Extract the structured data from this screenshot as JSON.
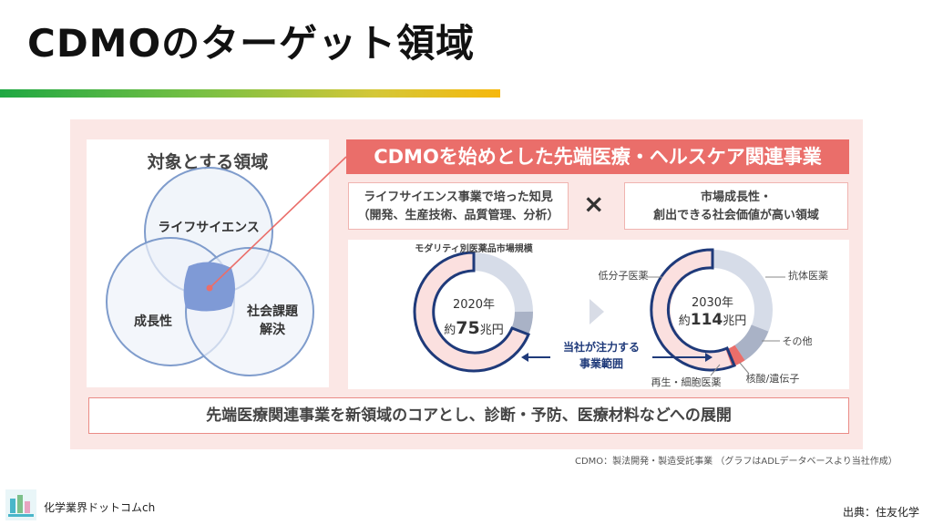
{
  "slide": {
    "title": "CDMOのターゲット領域",
    "venn": {
      "heading": "対象とする領域",
      "circle_top": "ライフサイエンス",
      "circle_left": "成長性",
      "circle_right_line1": "社会課題",
      "circle_right_line2": "解決"
    },
    "banner": "CDMOを始めとした先端医療・ヘルスケア関連事業",
    "left_box_line1": "ライフサイエンス事業で培った知見",
    "left_box_line2": "（開発、生産技術、品質管理、分析）",
    "times_symbol": "×",
    "right_box_line1": "市場成長性・",
    "right_box_line2": "創出できる社会価値が高い領域",
    "chart_title": "モダリティ別医薬品市場規模",
    "year_2020": "2020年",
    "value_2020_prefix": "約",
    "value_2020_num": "75",
    "value_2020_unit": "兆円",
    "year_2030": "2030年",
    "value_2030_prefix": "約",
    "value_2030_num": "114",
    "value_2030_unit": "兆円",
    "focus_line1": "当社が注力する",
    "focus_line2": "事業範囲",
    "label_small_molecule": "低分子医薬",
    "label_antibody": "抗体医薬",
    "label_other": "その他",
    "label_nucleic": "核酸/遺伝子",
    "label_regen": "再生・細胞医薬",
    "bottom_text": "先端医療関連事業を新領域のコアとし、診断・予防、医療材料などへの展開",
    "footnote": "CDMO：製法開発・製造受託事業 （グラフはADLデータベースより当社作成）",
    "brand": "化学業界ドットコムch",
    "source": "出典：住友化学"
  },
  "colors": {
    "banner": "#ea6e6a",
    "panel": "#fbe7e5",
    "small_molecule": "#fbe0df",
    "antibody": "#d6dce8",
    "other": "#a9b2c6",
    "regen": "#ea6e6a",
    "outline": "#1f3a7a"
  }
}
